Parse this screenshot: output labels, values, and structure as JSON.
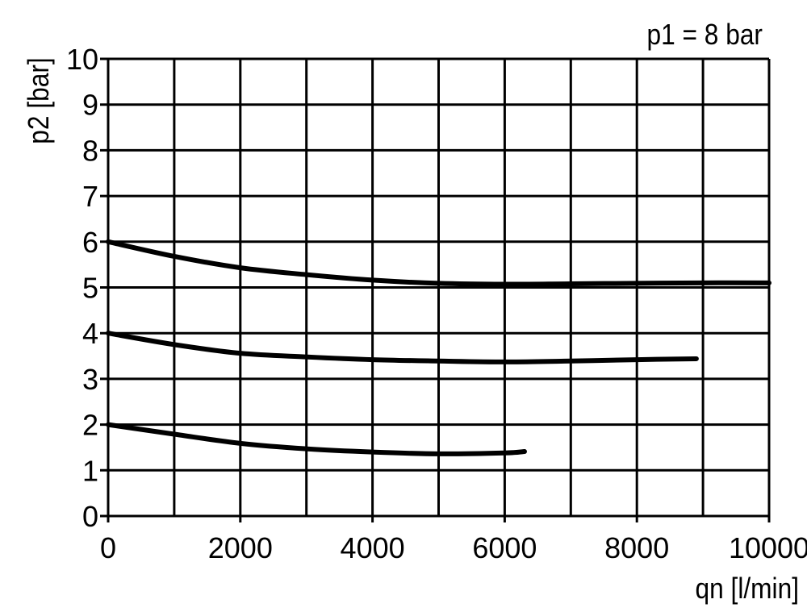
{
  "chart_data": {
    "type": "line",
    "annotation": "p1 = 8 bar",
    "xlabel": "qn [l/min]",
    "ylabel": "p2 [bar]",
    "xlim": [
      0,
      10000
    ],
    "ylim": [
      0,
      10
    ],
    "grid": true,
    "x_ticks": [
      "0",
      "2000",
      "4000",
      "6000",
      "8000",
      "10000"
    ],
    "x_tick_values": [
      0,
      2000,
      4000,
      6000,
      8000,
      10000
    ],
    "y_ticks": [
      "0",
      "1",
      "2",
      "3",
      "4",
      "5",
      "6",
      "7",
      "8",
      "9",
      "10"
    ],
    "y_tick_values": [
      0,
      1,
      2,
      3,
      4,
      5,
      6,
      7,
      8,
      9,
      10
    ],
    "series_color": "#000000",
    "series": [
      {
        "x": [
          0,
          1000,
          2000,
          3000,
          4000,
          5000,
          6000,
          7000,
          8000,
          9000,
          10000
        ],
        "y": [
          6.0,
          5.68,
          5.43,
          5.28,
          5.16,
          5.09,
          5.07,
          5.08,
          5.09,
          5.1,
          5.1
        ]
      },
      {
        "x": [
          0,
          1000,
          2000,
          3000,
          4000,
          5000,
          6000,
          7000,
          8000,
          8900
        ],
        "y": [
          4.0,
          3.75,
          3.56,
          3.48,
          3.42,
          3.39,
          3.37,
          3.39,
          3.42,
          3.44
        ]
      },
      {
        "x": [
          0,
          1000,
          2000,
          3000,
          4000,
          5000,
          6000,
          6300
        ],
        "y": [
          2.0,
          1.79,
          1.59,
          1.47,
          1.4,
          1.36,
          1.38,
          1.41
        ]
      }
    ]
  }
}
